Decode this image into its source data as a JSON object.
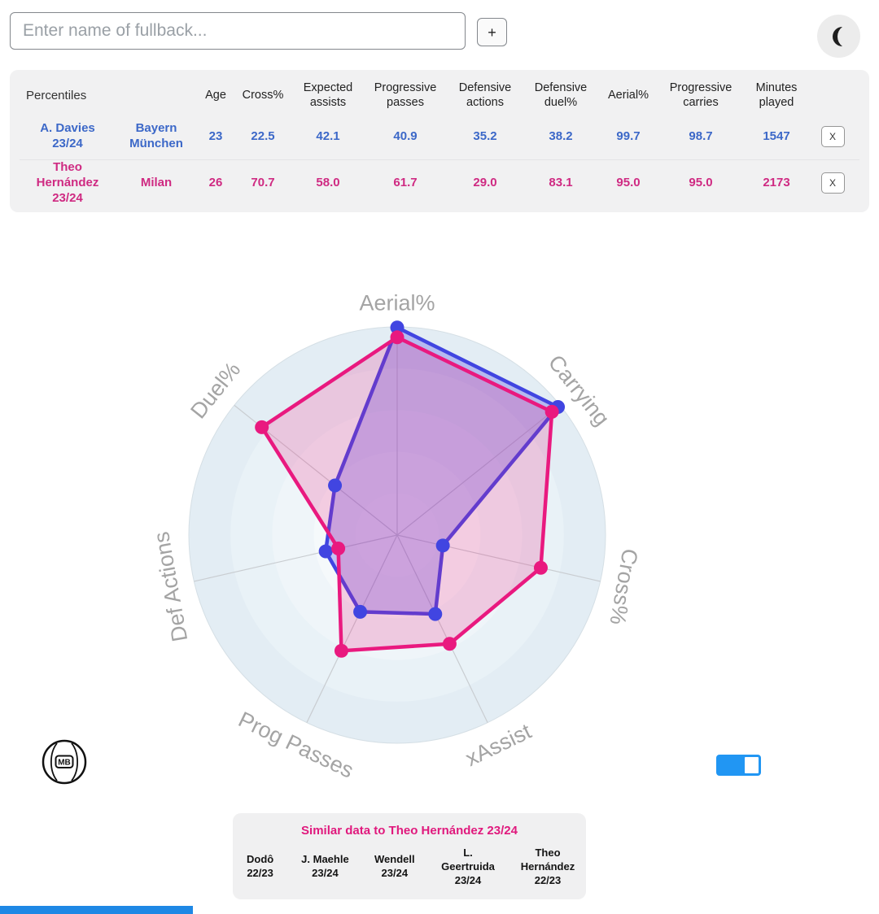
{
  "search": {
    "placeholder": "Enter name of fullback...",
    "add_button_label": "+"
  },
  "table": {
    "corner_label": "Percentiles",
    "columns": [
      "Age",
      "Cross%",
      "Expected assists",
      "Progressive passes",
      "Defensive actions",
      "Defensive duel%",
      "Aerial%",
      "Progressive carries",
      "Minutes played"
    ],
    "remove_label": "X",
    "rows": [
      {
        "name": "A. Davies 23/24",
        "team": "Bayern München",
        "color": "#3c68c8",
        "values": [
          "23",
          "22.5",
          "42.1",
          "40.9",
          "35.2",
          "38.2",
          "99.7",
          "98.7",
          "1547"
        ]
      },
      {
        "name": "Theo Hernández 23/24",
        "team": "Milan",
        "color": "#cf2a82",
        "values": [
          "26",
          "70.7",
          "58.0",
          "61.7",
          "29.0",
          "83.1",
          "95.0",
          "95.0",
          "2173"
        ]
      }
    ]
  },
  "chart_data": {
    "type": "radar",
    "axes": [
      "Aerial%",
      "Carrying",
      "Cross%",
      "xAssist",
      "Prog Passes",
      "Def Actions",
      "Duel%"
    ],
    "range": [
      0,
      100
    ],
    "series": [
      {
        "name": "A. Davies 23/24",
        "color": "#4145e1",
        "fill": "rgba(75,70,230,0.30)",
        "values": [
          99.7,
          98.7,
          22.5,
          42.1,
          40.9,
          35.2,
          38.2
        ]
      },
      {
        "name": "Theo Hernández 23/24",
        "color": "#e9197f",
        "fill": "rgba(233,25,127,0.20)",
        "values": [
          95.0,
          95.0,
          70.7,
          58.0,
          61.7,
          29.0,
          83.1
        ]
      }
    ],
    "grid": {
      "ring_colors": [
        "#e3edf4",
        "#e9f2f7",
        "#eff5f9",
        "#f5f9fb",
        "#fafcfd"
      ],
      "outer_stroke": "#d5dfe5",
      "spoke_color": "#c9cdd1",
      "label_color": "#a4a4a4"
    },
    "label_rotations": [
      0,
      51.4,
      100,
      -25.7,
      25.7,
      -100,
      -51.4
    ],
    "legend_position": "none"
  },
  "similar": {
    "title": "Similar data to Theo Hernández 23/24",
    "players": [
      "Dodô 22/23",
      "J. Maehle 23/24",
      "Wendell 23/24",
      "L. Geertruida 23/24",
      "Theo Hernández 22/23"
    ]
  },
  "logo": {
    "label": "MB"
  },
  "toggle": {
    "color": "#2196f3",
    "state": "on"
  },
  "accent_bar_color": "#1e88e5"
}
